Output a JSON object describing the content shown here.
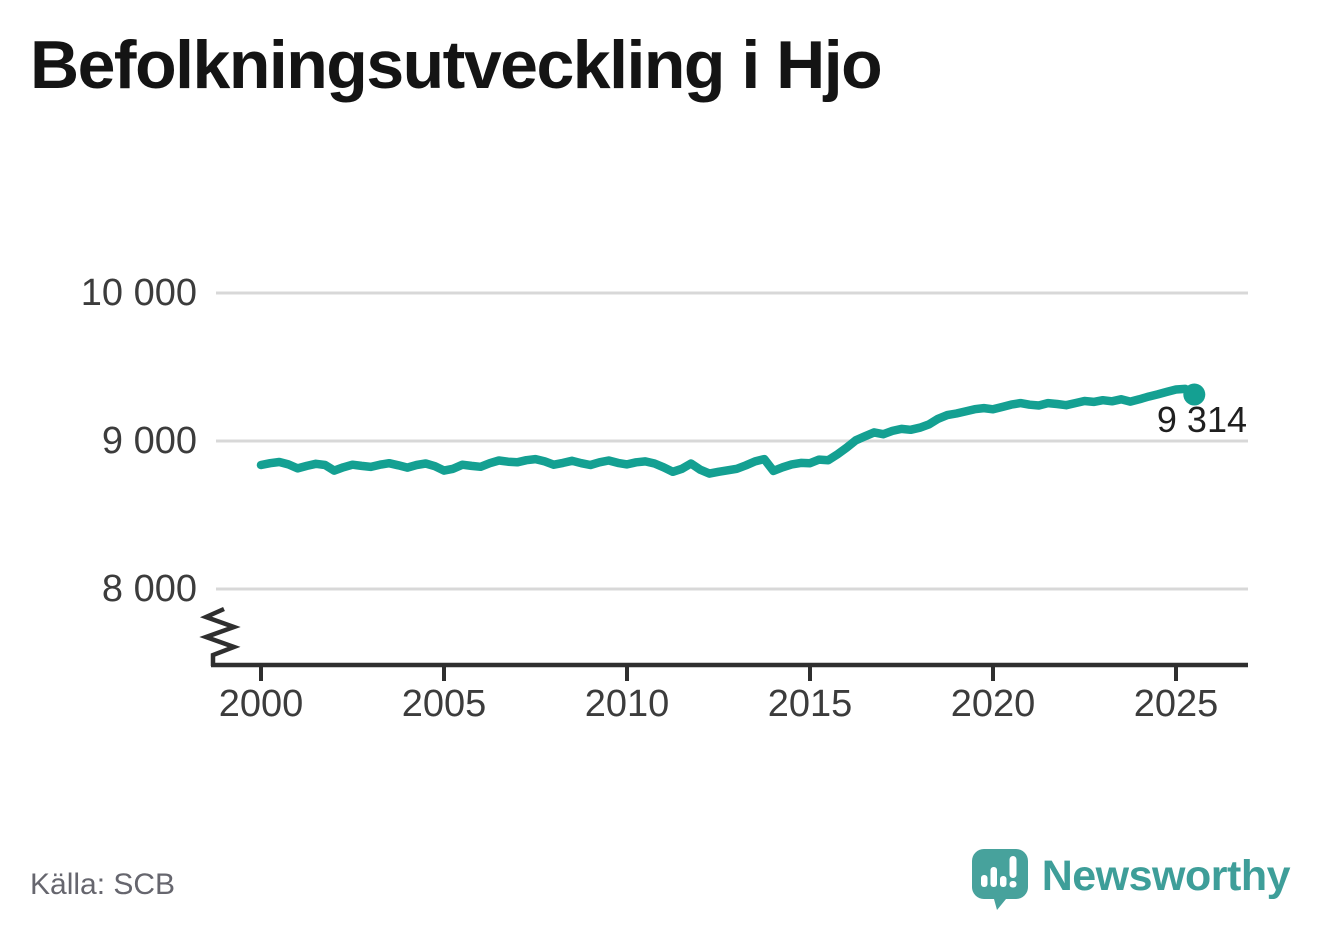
{
  "header": {
    "title": "Befolkningsutveckling i Hjo"
  },
  "footer": {
    "source": "Källa: SCB",
    "brand_name": "Newsworthy"
  },
  "colors": {
    "line": "#14a092",
    "grid": "#d8d8d8",
    "axis": "#2f2f2f",
    "tick_text": "#3c3c3c",
    "title_text": "#141414",
    "muted_text": "#66666e",
    "brand": "#3e9e99",
    "logo_bubble": "#47a29c"
  },
  "chart_data": {
    "type": "line",
    "title": "Befolkningsutveckling i Hjo",
    "xlabel": "",
    "ylabel": "",
    "grid": "horizontal",
    "legend": "none",
    "y_axis_break": true,
    "x_ticks": [
      2000,
      2005,
      2010,
      2015,
      2020,
      2025
    ],
    "x_tick_labels": [
      "2000",
      "2005",
      "2010",
      "2015",
      "2020",
      "2025"
    ],
    "y_ticks": [
      8000,
      9000,
      10000
    ],
    "y_tick_labels": [
      "8 000",
      "9 000",
      "10 000"
    ],
    "x_range": [
      1998.7,
      2027.0
    ],
    "y_range": [
      7700,
      10400
    ],
    "x_start": 2000.0,
    "x_step": 0.25,
    "end_label": "9 314",
    "end_value": 9314,
    "series": [
      {
        "values": [
          8838,
          8850,
          8858,
          8842,
          8815,
          8832,
          8846,
          8838,
          8800,
          8822,
          8840,
          8832,
          8825,
          8840,
          8850,
          8836,
          8820,
          8838,
          8848,
          8830,
          8800,
          8812,
          8840,
          8832,
          8826,
          8850,
          8868,
          8860,
          8856,
          8870,
          8878,
          8862,
          8840,
          8852,
          8866,
          8850,
          8838,
          8856,
          8868,
          8852,
          8842,
          8856,
          8862,
          8848,
          8822,
          8792,
          8812,
          8848,
          8806,
          8780,
          8792,
          8802,
          8812,
          8836,
          8862,
          8878,
          8798,
          8822,
          8842,
          8852,
          8850,
          8874,
          8870,
          8910,
          8955,
          9005,
          9032,
          9058,
          9046,
          9068,
          9082,
          9076,
          9090,
          9112,
          9150,
          9175,
          9186,
          9200,
          9215,
          9222,
          9214,
          9230,
          9246,
          9256,
          9245,
          9240,
          9256,
          9250,
          9242,
          9256,
          9270,
          9264,
          9276,
          9268,
          9282,
          9266,
          9282,
          9300,
          9315,
          9332,
          9348,
          9352,
          9314
        ]
      }
    ]
  }
}
